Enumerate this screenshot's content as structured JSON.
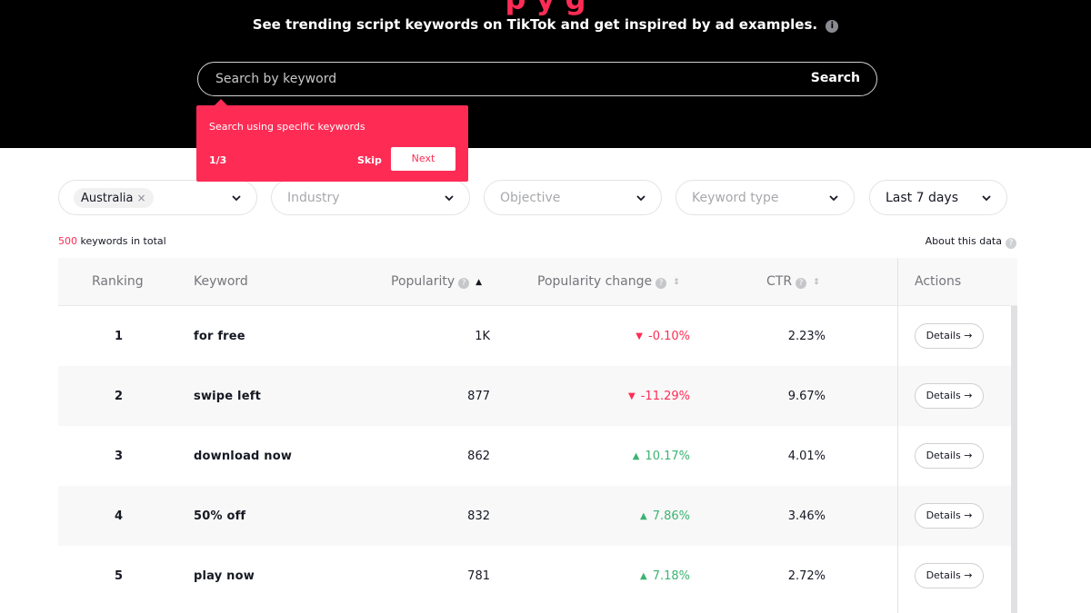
{
  "hero": {
    "title_partial": "p              y              g",
    "subtitle": "See trending script keywords on TikTok and get inspired by ad examples.",
    "search": {
      "placeholder": "Search by keyword",
      "button": "Search"
    }
  },
  "tooltip": {
    "text": "Search using specific keywords",
    "step": "1/3",
    "skip": "Skip",
    "next": "Next"
  },
  "filters": {
    "country_chip": "Australia",
    "industry": "Industry",
    "objective": "Objective",
    "keyword_type": "Keyword type",
    "period": "Last 7 days"
  },
  "summary": {
    "total_count": "500",
    "total_suffix": " keywords in total",
    "about": "About this data"
  },
  "table": {
    "headers": {
      "ranking": "Ranking",
      "keyword": "Keyword",
      "popularity": "Popularity",
      "popularity_change": "Popularity change",
      "ctr": "CTR",
      "actions": "Actions"
    },
    "details_label": "Details →",
    "rows": [
      {
        "rank": "1",
        "keyword": "for free",
        "popularity": "1K",
        "change": "-0.10%",
        "direction": "down",
        "ctr": "2.23%"
      },
      {
        "rank": "2",
        "keyword": "swipe left",
        "popularity": "877",
        "change": "-11.29%",
        "direction": "down",
        "ctr": "9.67%"
      },
      {
        "rank": "3",
        "keyword": "download now",
        "popularity": "862",
        "change": "10.17%",
        "direction": "up",
        "ctr": "4.01%"
      },
      {
        "rank": "4",
        "keyword": "50% off",
        "popularity": "832",
        "change": "7.86%",
        "direction": "up",
        "ctr": "3.46%"
      },
      {
        "rank": "5",
        "keyword": "play now",
        "popularity": "781",
        "change": "7.18%",
        "direction": "up",
        "ctr": "2.72%"
      }
    ]
  },
  "colors": {
    "accent": "#fe2c55",
    "up": "#3cb371",
    "hero_bg": "#000000"
  }
}
